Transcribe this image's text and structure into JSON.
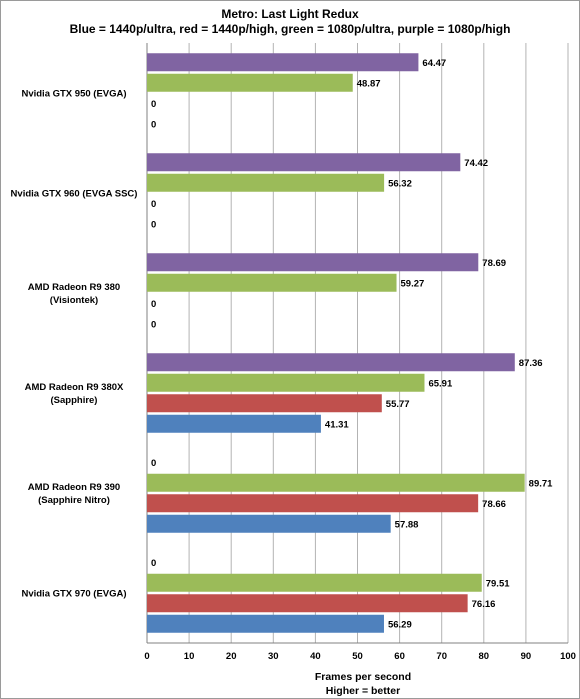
{
  "chart_data": {
    "type": "bar",
    "orientation": "horizontal",
    "title": "Metro: Last Light Redux",
    "subtitle": "Blue = 1440p/ultra, red = 1440p/high, green  = 1080p/ultra, purple = 1080p/high",
    "xlabel": "Frames per second",
    "xlabel2": "Higher = better",
    "ylabel": "",
    "xlim": [
      0,
      100
    ],
    "xticks": [
      0,
      10,
      20,
      30,
      40,
      50,
      60,
      70,
      80,
      90,
      100
    ],
    "grid": true,
    "legend": "none",
    "categories": [
      "Nvidia GTX 950 (EVGA)",
      "Nvidia GTX 960 (EVGA SSC)",
      "AMD Radeon R9 380 (Visiontek)",
      "AMD Radeon R9 380X (Sapphire)",
      "AMD Radeon R9 390 (Sapphire Nitro)",
      "Nvidia GTX 970 (EVGA)"
    ],
    "series": [
      {
        "color": "#8064A2",
        "values": [
          64.47,
          74.42,
          78.69,
          87.36,
          0,
          0
        ]
      },
      {
        "color": "#9BBB59",
        "values": [
          48.87,
          56.32,
          59.27,
          65.91,
          89.71,
          79.51
        ]
      },
      {
        "color": "#C0504D",
        "values": [
          0,
          0,
          0,
          55.77,
          78.66,
          76.16
        ]
      },
      {
        "color": "#4F81BD",
        "values": [
          0,
          0,
          0,
          41.31,
          57.88,
          56.29
        ]
      }
    ]
  }
}
